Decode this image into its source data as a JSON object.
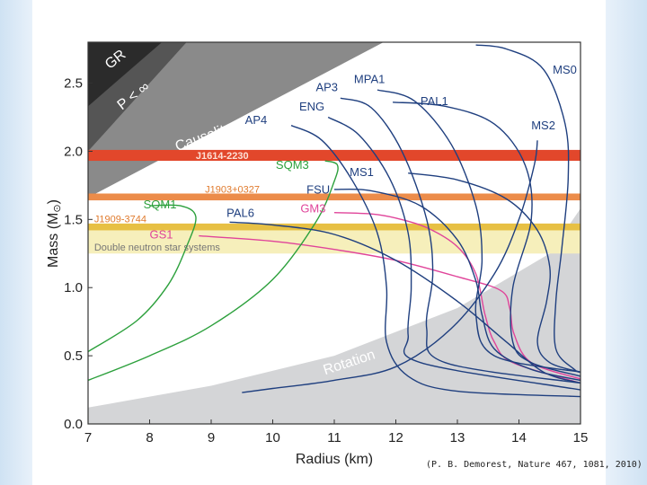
{
  "citation": "(P. B. Demorest, Nature 467, 1081, 2010)",
  "chart_data": {
    "type": "line",
    "xlabel": "Radius (km)",
    "ylabel_main": "Mass (M",
    "ylabel_sub": "⊙",
    "ylabel_close": ")",
    "xlim": [
      7,
      15
    ],
    "ylim": [
      0,
      2.8
    ],
    "xticks": [
      7,
      8,
      9,
      10,
      11,
      12,
      13,
      14,
      15
    ],
    "yticks": [
      0.0,
      0.5,
      1.0,
      1.5,
      2.0,
      2.5
    ],
    "ytick_labels": [
      "0.0",
      "0.5",
      "1.0",
      "1.5",
      "2.0",
      "2.5"
    ],
    "regions": [
      {
        "name": "GR",
        "label": "GR",
        "color": "#2b2b2b",
        "boundary": [
          [
            7,
            2.33
          ],
          [
            8.2,
            2.8
          ]
        ]
      },
      {
        "name": "P < ∞",
        "label": "P < ∞",
        "color": "#555555",
        "boundary": [
          [
            7,
            2.0
          ],
          [
            8.6,
            2.8
          ]
        ]
      },
      {
        "name": "Causality",
        "label": "Causality",
        "color": "#8a8a8a",
        "boundary": [
          [
            7,
            1.66
          ],
          [
            11.8,
            2.8
          ]
        ]
      },
      {
        "name": "Rotation",
        "label": "Rotation",
        "color": "#d4d5d7",
        "boundary": [
          [
            7,
            0.12
          ],
          [
            9,
            0.28
          ],
          [
            11,
            0.5
          ],
          [
            13,
            0.85
          ],
          [
            14.5,
            1.25
          ],
          [
            15,
            1.58
          ]
        ]
      }
    ],
    "bands": [
      {
        "name": "J1614-2230",
        "label": "J1614-2230",
        "ymin": 1.93,
        "ymax": 2.01,
        "color": "#e2472b",
        "text_color": "#fde0d6"
      },
      {
        "name": "J1903+0327",
        "label": "J1903+0327",
        "ymin": 1.64,
        "ymax": 1.69,
        "color": "#ec8c4a",
        "text_color": "#e07a2c"
      },
      {
        "name": "J1909-3744",
        "label": "J1909-3744",
        "ymin": 1.42,
        "ymax": 1.47,
        "color": "#e7c044",
        "text_color": "#e07a2c"
      },
      {
        "name": "Double neutron star systems",
        "label": "Double neutron star systems",
        "ymin": 1.25,
        "ymax": 1.46,
        "color": "#f6efbb",
        "text_color": "#777777"
      }
    ],
    "series": [
      {
        "name": "GS1",
        "color": "#e0449a",
        "label_at": [
          8.0,
          1.36
        ],
        "points": [
          [
            8.8,
            1.38
          ],
          [
            10,
            1.34
          ],
          [
            11,
            1.28
          ],
          [
            12,
            1.2
          ],
          [
            13,
            1.08
          ],
          [
            13.7,
            0.98
          ],
          [
            13.85,
            0.85
          ],
          [
            13.92,
            0.66
          ],
          [
            14.2,
            0.45
          ],
          [
            15,
            0.33
          ]
        ]
      },
      {
        "name": "GM3",
        "color": "#e0449a",
        "label_at": [
          10.45,
          1.55
        ],
        "points": [
          [
            11.0,
            1.55
          ],
          [
            11.6,
            1.54
          ],
          [
            12.0,
            1.51
          ],
          [
            12.5,
            1.44
          ],
          [
            13.0,
            1.3
          ],
          [
            13.3,
            1.1
          ],
          [
            13.45,
            0.8
          ],
          [
            13.6,
            0.6
          ],
          [
            13.9,
            0.45
          ],
          [
            15,
            0.3
          ]
        ]
      },
      {
        "name": "SQM1",
        "color": "#2ca03c",
        "label_at": [
          7.9,
          1.58
        ],
        "points": [
          [
            7.0,
            0.53
          ],
          [
            7.8,
            0.76
          ],
          [
            8.3,
            1.02
          ],
          [
            8.6,
            1.3
          ],
          [
            8.75,
            1.52
          ],
          [
            8.5,
            1.6
          ],
          [
            8.0,
            1.6
          ]
        ]
      },
      {
        "name": "SQM3",
        "color": "#2ca03c",
        "label_at": [
          10.05,
          1.87
        ],
        "points": [
          [
            7.0,
            0.32
          ],
          [
            8.0,
            0.5
          ],
          [
            9.0,
            0.72
          ],
          [
            10.0,
            1.06
          ],
          [
            10.7,
            1.48
          ],
          [
            11.0,
            1.78
          ],
          [
            11.05,
            1.9
          ],
          [
            10.85,
            1.93
          ]
        ]
      },
      {
        "name": "PAL6",
        "color": "#1f3f7f",
        "label_at": [
          9.25,
          1.52
        ],
        "points": [
          [
            9.3,
            1.48
          ],
          [
            10.0,
            1.46
          ],
          [
            11.0,
            1.39
          ],
          [
            12.0,
            1.2
          ],
          [
            13.0,
            0.9
          ],
          [
            13.8,
            0.6
          ],
          [
            14.4,
            0.38
          ],
          [
            15,
            0.3
          ]
        ]
      },
      {
        "name": "FSU",
        "color": "#1f3f7f",
        "label_at": [
          10.55,
          1.69
        ],
        "points": [
          [
            11.0,
            1.72
          ],
          [
            11.6,
            1.71
          ],
          [
            12.4,
            1.6
          ],
          [
            13.0,
            1.35
          ],
          [
            13.3,
            1.05
          ],
          [
            13.4,
            0.8
          ],
          [
            13.6,
            0.55
          ],
          [
            14.2,
            0.4
          ],
          [
            15,
            0.32
          ]
        ]
      },
      {
        "name": "MS1",
        "color": "#1f3f7f",
        "label_at": [
          11.25,
          1.82
        ],
        "points": [
          [
            12.2,
            1.84
          ],
          [
            13.0,
            1.79
          ],
          [
            13.8,
            1.65
          ],
          [
            14.3,
            1.42
          ],
          [
            14.5,
            1.15
          ],
          [
            14.45,
            0.9
          ],
          [
            14.3,
            0.6
          ],
          [
            14.5,
            0.45
          ],
          [
            15,
            0.38
          ]
        ]
      },
      {
        "name": "MS2",
        "color": "#1f3f7f",
        "label_at": [
          14.2,
          2.16
        ],
        "points": [
          [
            14.3,
            2.08
          ],
          [
            14.25,
            1.9
          ],
          [
            14.0,
            1.5
          ],
          [
            13.6,
            1.1
          ],
          [
            12.9,
            0.7
          ],
          [
            12.0,
            0.42
          ],
          [
            11.0,
            0.32
          ],
          [
            10.0,
            0.26
          ],
          [
            9.5,
            0.23
          ]
        ]
      },
      {
        "name": "MS0",
        "color": "#1f3f7f",
        "label_at": [
          14.55,
          2.57
        ],
        "points": [
          [
            13.3,
            2.78
          ],
          [
            13.8,
            2.75
          ],
          [
            14.4,
            2.6
          ],
          [
            14.75,
            2.2
          ],
          [
            14.8,
            1.8
          ],
          [
            14.7,
            1.3
          ],
          [
            14.6,
            0.9
          ],
          [
            14.6,
            0.55
          ],
          [
            14.9,
            0.4
          ],
          [
            15,
            0.38
          ]
        ]
      },
      {
        "name": "AP4",
        "color": "#1f3f7f",
        "label_at": [
          9.55,
          2.2
        ],
        "points": [
          [
            10.3,
            2.19
          ],
          [
            10.8,
            2.08
          ],
          [
            11.3,
            1.78
          ],
          [
            11.7,
            1.4
          ],
          [
            11.85,
            1.0
          ],
          [
            11.85,
            0.6
          ],
          [
            12.2,
            0.35
          ],
          [
            13.0,
            0.24
          ],
          [
            15,
            0.2
          ]
        ]
      },
      {
        "name": "ENG",
        "color": "#1f3f7f",
        "label_at": [
          10.43,
          2.3
        ],
        "points": [
          [
            10.9,
            2.25
          ],
          [
            11.4,
            2.12
          ],
          [
            11.9,
            1.8
          ],
          [
            12.2,
            1.4
          ],
          [
            12.25,
            1.0
          ],
          [
            12.2,
            0.65
          ],
          [
            12.4,
            0.45
          ],
          [
            15,
            0.25
          ]
        ]
      },
      {
        "name": "AP3",
        "color": "#1f3f7f",
        "label_at": [
          10.7,
          2.44
        ],
        "points": [
          [
            11.1,
            2.39
          ],
          [
            11.6,
            2.32
          ],
          [
            12.1,
            2.0
          ],
          [
            12.5,
            1.5
          ],
          [
            12.6,
            1.1
          ],
          [
            12.5,
            0.7
          ],
          [
            12.8,
            0.45
          ],
          [
            15,
            0.3
          ]
        ]
      },
      {
        "name": "MPA1",
        "color": "#1f3f7f",
        "label_at": [
          11.32,
          2.5
        ],
        "points": [
          [
            11.7,
            2.45
          ],
          [
            12.3,
            2.37
          ],
          [
            12.9,
            2.05
          ],
          [
            13.3,
            1.6
          ],
          [
            13.4,
            1.2
          ],
          [
            13.3,
            0.8
          ],
          [
            13.6,
            0.5
          ],
          [
            15,
            0.38
          ]
        ]
      },
      {
        "name": "PAL1",
        "color": "#1f3f7f",
        "label_at": [
          12.4,
          2.34
        ],
        "points": [
          [
            11.95,
            2.36
          ],
          [
            12.8,
            2.33
          ],
          [
            13.6,
            2.2
          ],
          [
            14.1,
            1.9
          ],
          [
            14.2,
            1.5
          ],
          [
            13.9,
            1.0
          ],
          [
            13.9,
            0.6
          ],
          [
            14.2,
            0.45
          ],
          [
            15,
            0.35
          ]
        ]
      }
    ]
  }
}
